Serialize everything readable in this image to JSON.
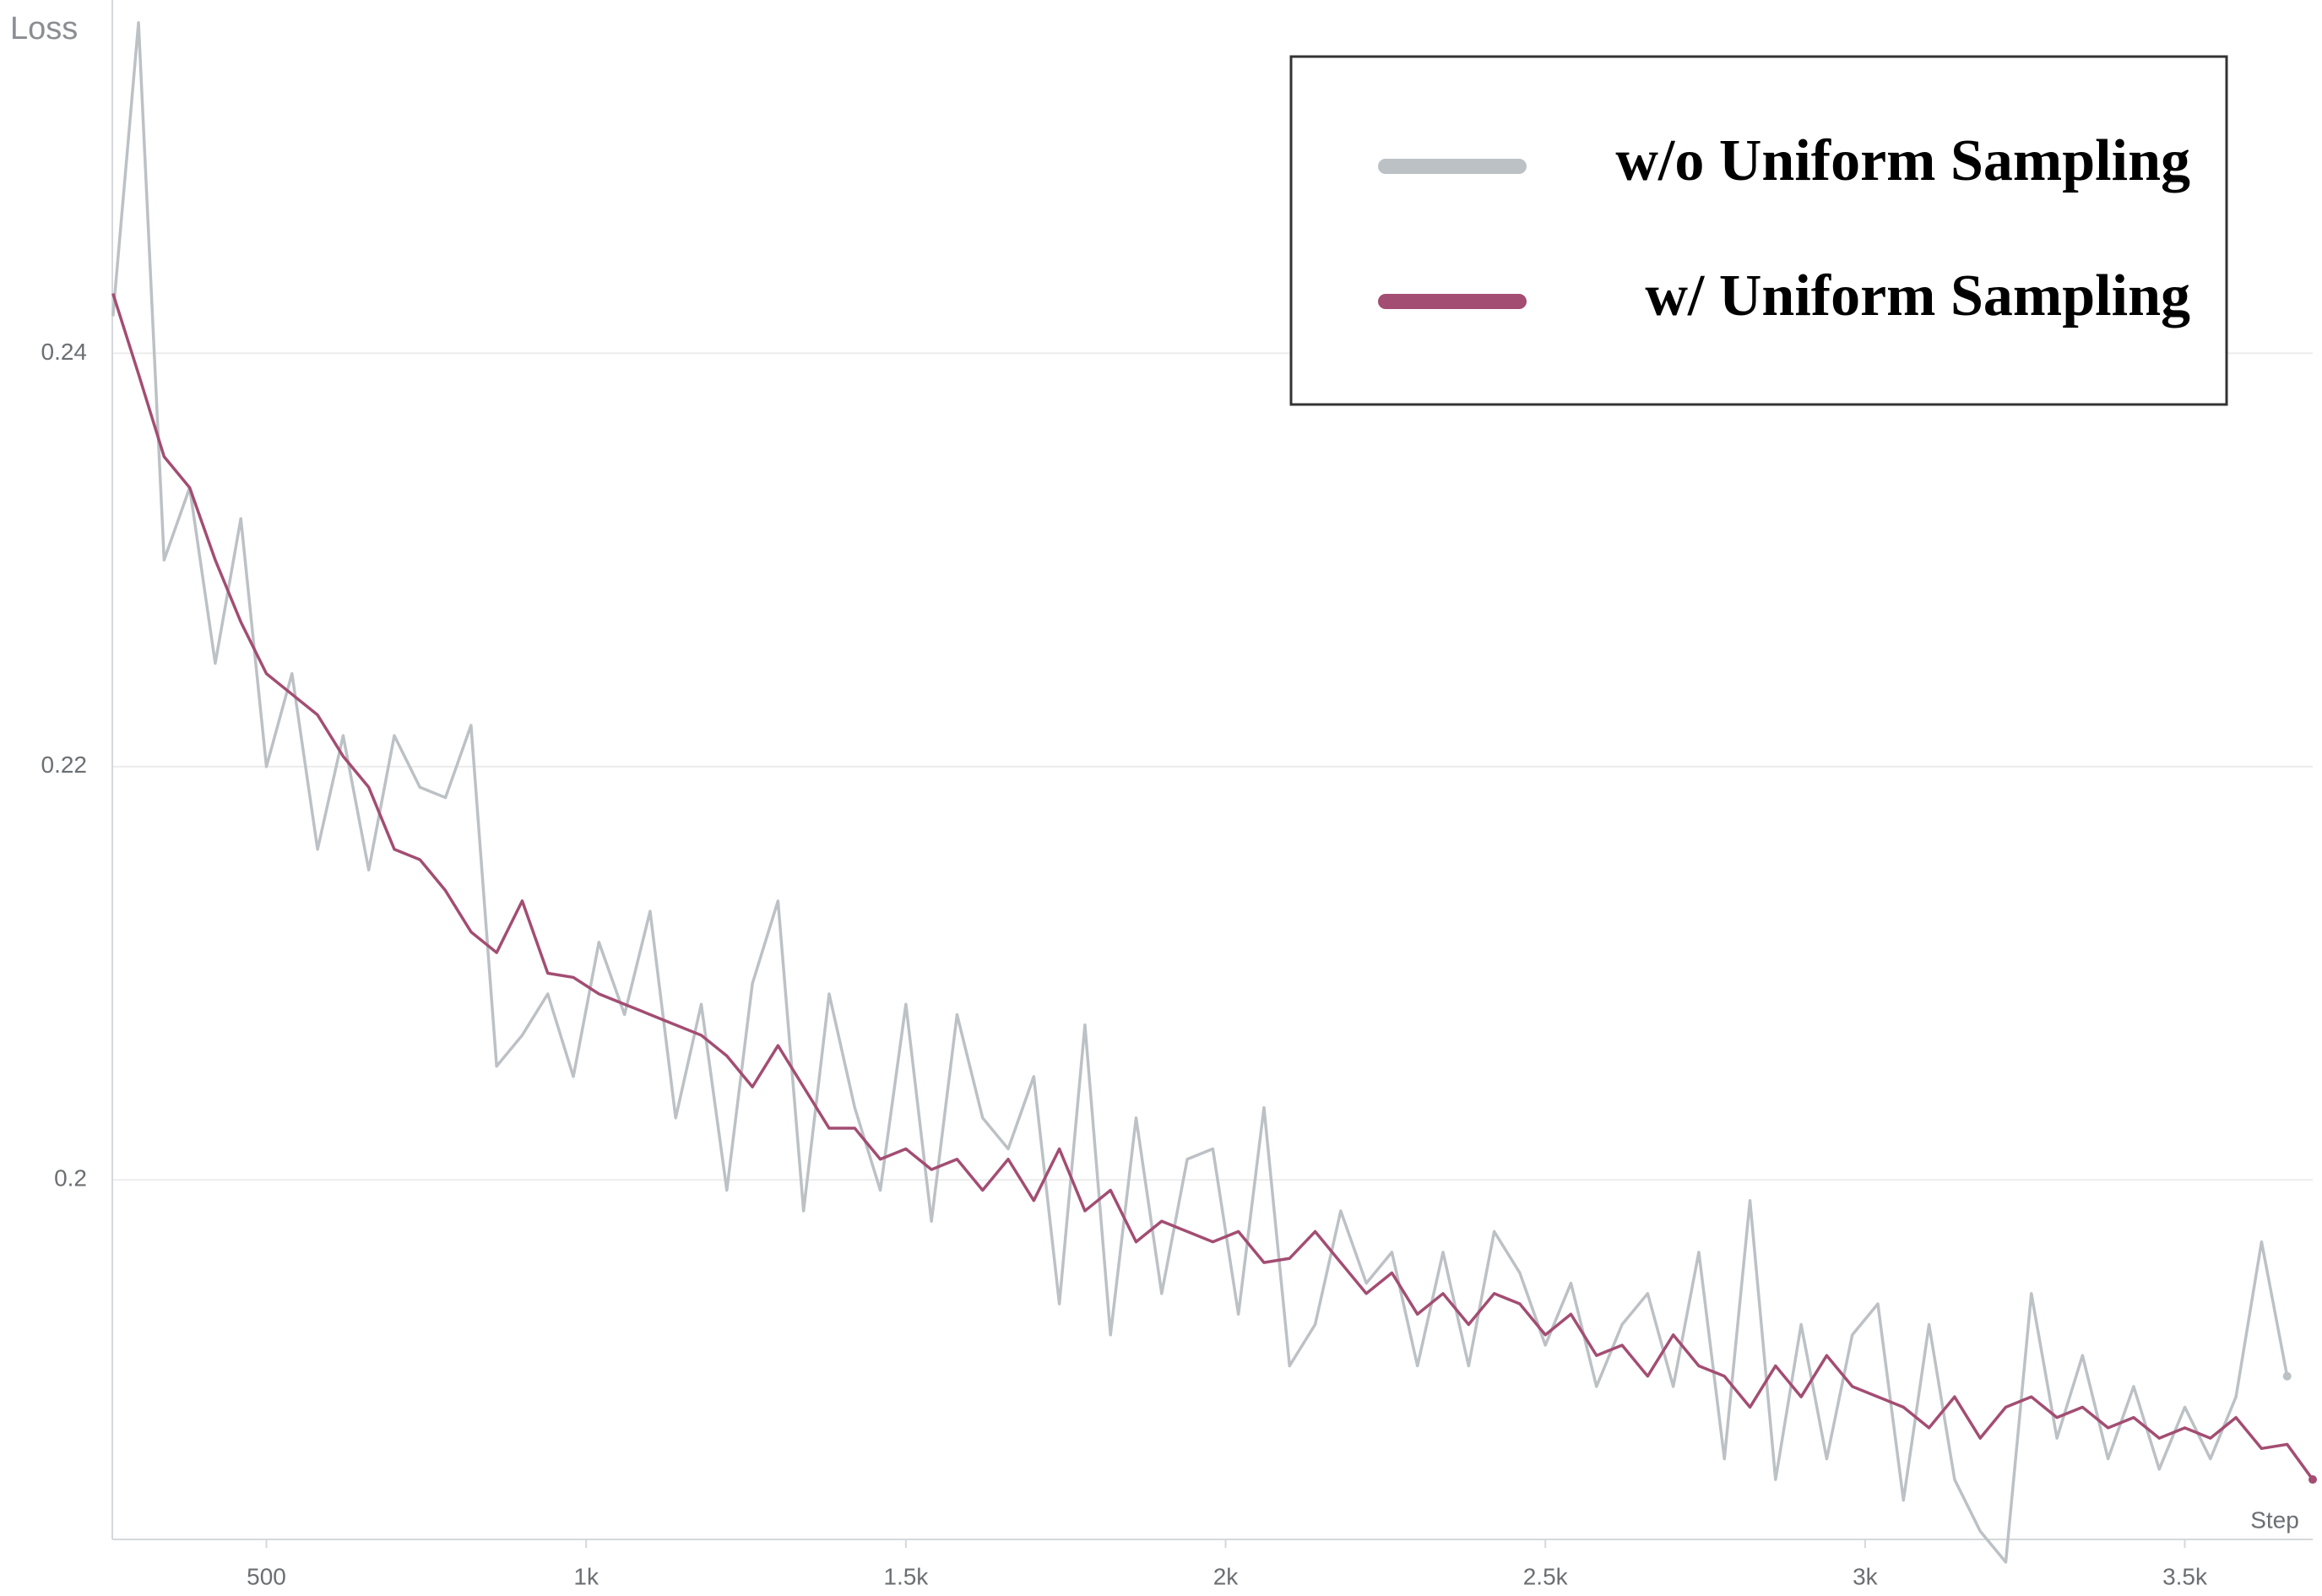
{
  "chart_data": {
    "type": "line",
    "y_label": "Loss",
    "x_label": "Step",
    "x": [
      260,
      300,
      340,
      380,
      420,
      460,
      500,
      540,
      580,
      620,
      660,
      700,
      740,
      780,
      820,
      860,
      900,
      940,
      980,
      1020,
      1060,
      1100,
      1140,
      1180,
      1220,
      1260,
      1300,
      1340,
      1380,
      1420,
      1460,
      1500,
      1540,
      1580,
      1620,
      1660,
      1700,
      1740,
      1780,
      1820,
      1860,
      1900,
      1940,
      1980,
      2020,
      2060,
      2100,
      2140,
      2180,
      2220,
      2260,
      2300,
      2340,
      2380,
      2420,
      2460,
      2500,
      2540,
      2580,
      2620,
      2660,
      2700,
      2740,
      2780,
      2820,
      2860,
      2900,
      2940,
      2980,
      3020,
      3060,
      3100,
      3140,
      3180,
      3220,
      3260,
      3300,
      3340,
      3380,
      3420,
      3460,
      3500,
      3540,
      3580,
      3620,
      3660,
      3700
    ],
    "series": [
      {
        "name": "w/o Uniform Sampling",
        "color": "#bcc1c5",
        "values": [
          0.2418,
          0.256,
          0.23,
          0.2335,
          0.225,
          0.232,
          0.22,
          0.2245,
          0.216,
          0.2215,
          0.215,
          0.2215,
          0.219,
          0.2185,
          0.222,
          0.2055,
          0.207,
          0.209,
          0.205,
          0.2115,
          0.208,
          0.213,
          0.203,
          0.2085,
          0.1995,
          0.2095,
          0.2135,
          0.1985,
          0.209,
          0.2035,
          0.1995,
          0.2085,
          0.198,
          0.208,
          0.203,
          0.2015,
          0.205,
          0.194,
          0.2075,
          0.1925,
          0.203,
          0.1945,
          0.201,
          0.2015,
          0.1935,
          0.2035,
          0.191,
          0.193,
          0.1985,
          0.195,
          0.1965,
          0.191,
          0.1965,
          0.191,
          0.1975,
          0.1955,
          0.192,
          0.195,
          0.19,
          0.193,
          0.1945,
          0.19,
          0.1965,
          0.1865,
          0.199,
          0.1855,
          0.193,
          0.1865,
          0.1925,
          0.194,
          0.1845,
          0.193,
          0.1855,
          0.183,
          0.1815,
          0.1945,
          0.1875,
          0.1915,
          0.1865,
          0.19,
          0.186,
          0.189,
          0.1865,
          0.1895,
          0.197,
          0.1905,
          null
        ]
      },
      {
        "name": "w/ Uniform Sampling",
        "color": "#a34d72",
        "values": [
          0.2429,
          0.239,
          0.235,
          0.2335,
          0.23,
          0.227,
          0.2245,
          0.2235,
          0.2225,
          0.2205,
          0.219,
          0.216,
          0.2155,
          0.214,
          0.212,
          0.211,
          0.2135,
          0.21,
          0.2098,
          0.209,
          0.2085,
          0.208,
          0.2075,
          0.207,
          0.206,
          0.2045,
          0.2065,
          0.2045,
          0.2025,
          0.2025,
          0.201,
          0.2015,
          0.2005,
          0.201,
          0.1995,
          0.201,
          0.199,
          0.2015,
          0.1985,
          0.1995,
          0.197,
          0.198,
          0.1975,
          0.197,
          0.1975,
          0.196,
          0.1962,
          0.1975,
          0.196,
          0.1945,
          0.1955,
          0.1935,
          0.1945,
          0.193,
          0.1945,
          0.194,
          0.1925,
          0.1935,
          0.1915,
          0.192,
          0.1905,
          0.1925,
          0.191,
          0.1905,
          0.189,
          0.191,
          0.1895,
          0.1915,
          0.19,
          0.1895,
          0.189,
          0.188,
          0.1895,
          0.1875,
          0.189,
          0.1895,
          0.1885,
          0.189,
          0.188,
          0.1885,
          0.1875,
          0.188,
          0.1875,
          0.1885,
          0.187,
          0.1872,
          0.1855
        ]
      }
    ],
    "xlim": [
      259,
      3700
    ],
    "ylim": [
      0.1826,
      0.2571
    ],
    "xticks": [
      500,
      {
        "value": 1000,
        "label": "1k"
      },
      {
        "value": 1500,
        "label": "1.5k"
      },
      {
        "value": 2000,
        "label": "2k"
      },
      {
        "value": 2500,
        "label": "2.5k"
      },
      {
        "value": 3000,
        "label": "3k"
      },
      {
        "value": 3500,
        "label": "3.5k"
      }
    ],
    "yticks": [
      0.2,
      0.22,
      0.24
    ],
    "grid": true,
    "legend": "upper right"
  }
}
